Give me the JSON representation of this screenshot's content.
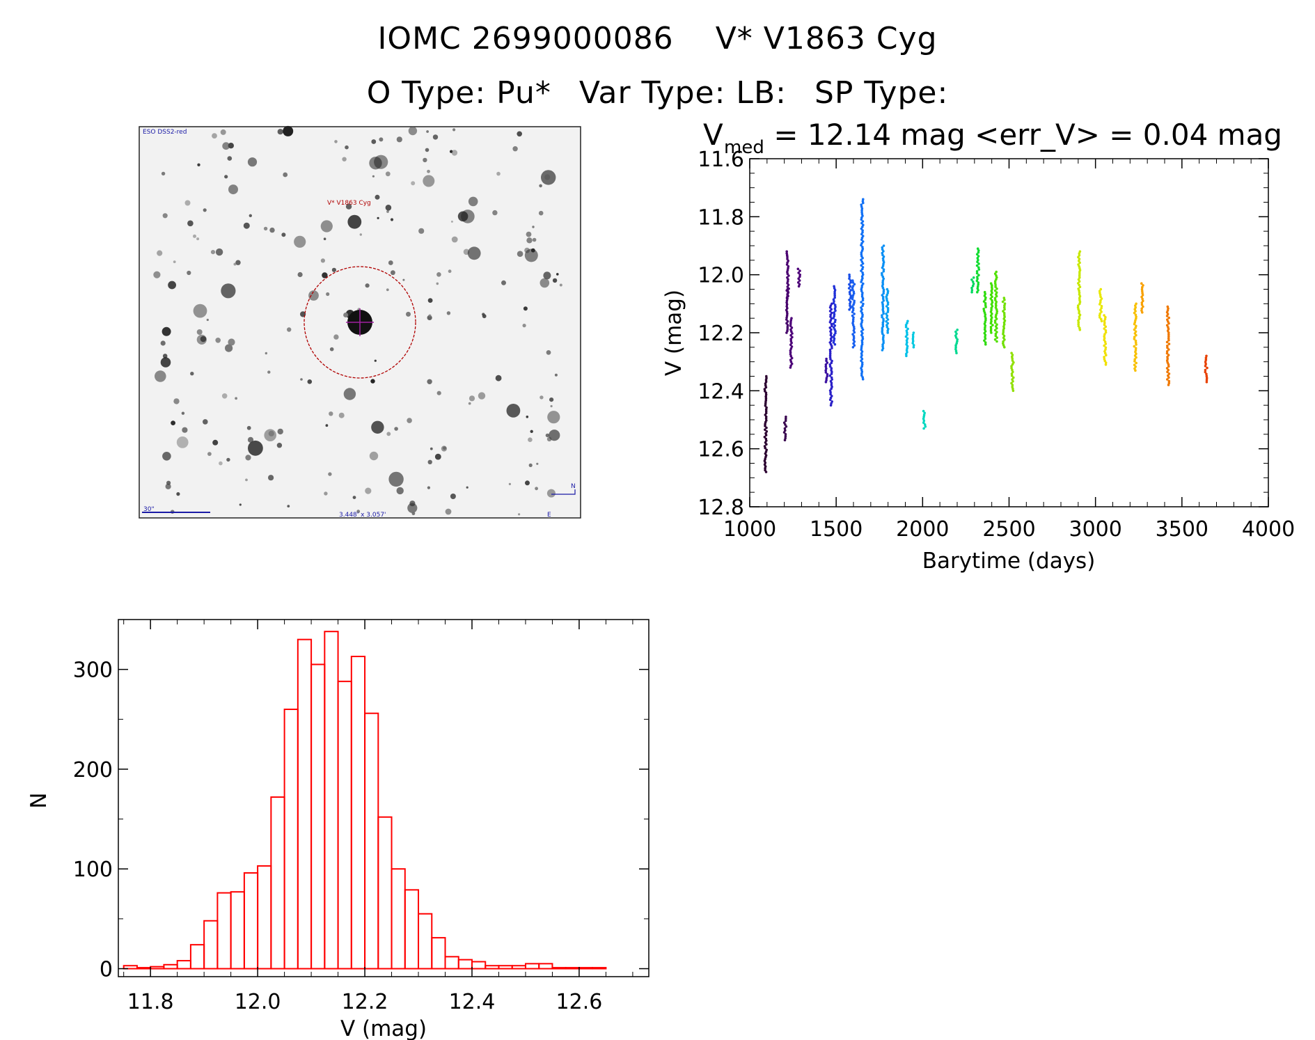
{
  "header": {
    "line1_a": "IOMC 2699000086",
    "line1_b": "V* V1863 Cyg",
    "line2_a": "O Type: Pu*",
    "line2_b": "Var Type: LB:",
    "line2_c": "SP Type:"
  },
  "image_panel": {
    "survey_label": "ESO DSS2-red",
    "object_label": "V* V1863 Cyg",
    "scale_label": "30\"",
    "size_label": "3.448' x 3.057'",
    "north_label": "N",
    "east_label": "E",
    "colors": {
      "annotation_blue": "#1a1aa6",
      "circle_red": "#b00000"
    }
  },
  "chart_data": [
    {
      "type": "scatter",
      "title_main": "V",
      "title_sub": "med",
      "title_rest": " = 12.14 mag <err_V> = 0.04 mag",
      "xlabel": "Barytime (days)",
      "ylabel": "V (mag)",
      "xlim": [
        1000,
        4000
      ],
      "ylim": [
        12.8,
        11.6
      ],
      "xticks": [
        "1000",
        "1500",
        "2000",
        "2500",
        "3000",
        "3500",
        "4000"
      ],
      "yticks": [
        "11.6",
        "11.8",
        "12.0",
        "12.2",
        "12.4",
        "12.6",
        "12.8"
      ],
      "clusters": [
        {
          "x": 1092,
          "ymin": 12.35,
          "ymax": 12.68,
          "color": "#2b0030"
        },
        {
          "x": 1205,
          "ymin": 12.49,
          "ymax": 12.57,
          "color": "#3a0850"
        },
        {
          "x": 1215,
          "ymin": 12.05,
          "ymax": 12.2,
          "color": "#45006a"
        },
        {
          "x": 1220,
          "ymin": 11.92,
          "ymax": 12.08,
          "color": "#4a0070"
        },
        {
          "x": 1240,
          "ymin": 12.15,
          "ymax": 12.32,
          "color": "#4c0078"
        },
        {
          "x": 1285,
          "ymin": 11.98,
          "ymax": 12.04,
          "color": "#4c0078"
        },
        {
          "x": 1445,
          "ymin": 12.29,
          "ymax": 12.37,
          "color": "#3a10a0"
        },
        {
          "x": 1470,
          "ymin": 12.1,
          "ymax": 12.45,
          "color": "#2a20c8"
        },
        {
          "x": 1490,
          "ymin": 12.04,
          "ymax": 12.24,
          "color": "#2030d8"
        },
        {
          "x": 1580,
          "ymin": 12.0,
          "ymax": 12.12,
          "color": "#1a50e8"
        },
        {
          "x": 1600,
          "ymin": 12.02,
          "ymax": 12.25,
          "color": "#1860f0"
        },
        {
          "x": 1650,
          "ymin": 11.74,
          "ymax": 12.36,
          "color": "#1070f5"
        },
        {
          "x": 1770,
          "ymin": 11.9,
          "ymax": 12.26,
          "color": "#0a90f5"
        },
        {
          "x": 1795,
          "ymin": 12.05,
          "ymax": 12.2,
          "color": "#08a0f0"
        },
        {
          "x": 1910,
          "ymin": 12.16,
          "ymax": 12.28,
          "color": "#00c0e8"
        },
        {
          "x": 1945,
          "ymin": 12.2,
          "ymax": 12.25,
          "color": "#00c8e0"
        },
        {
          "x": 2010,
          "ymin": 12.47,
          "ymax": 12.53,
          "color": "#00d8c0"
        },
        {
          "x": 2195,
          "ymin": 12.19,
          "ymax": 12.27,
          "color": "#00d890"
        },
        {
          "x": 2290,
          "ymin": 12.01,
          "ymax": 12.06,
          "color": "#00d860"
        },
        {
          "x": 2320,
          "ymin": 11.91,
          "ymax": 12.06,
          "color": "#10dc30"
        },
        {
          "x": 2360,
          "ymin": 12.06,
          "ymax": 12.24,
          "color": "#30dc10"
        },
        {
          "x": 2400,
          "ymin": 12.03,
          "ymax": 12.2,
          "color": "#40e000"
        },
        {
          "x": 2425,
          "ymin": 11.99,
          "ymax": 12.23,
          "color": "#50e000"
        },
        {
          "x": 2470,
          "ymin": 12.08,
          "ymax": 12.25,
          "color": "#70e000"
        },
        {
          "x": 2520,
          "ymin": 12.27,
          "ymax": 12.4,
          "color": "#90e000"
        },
        {
          "x": 2905,
          "ymin": 11.92,
          "ymax": 12.19,
          "color": "#c8e800"
        },
        {
          "x": 3030,
          "ymin": 12.05,
          "ymax": 12.16,
          "color": "#e8e800"
        },
        {
          "x": 3055,
          "ymin": 12.14,
          "ymax": 12.31,
          "color": "#f0e000"
        },
        {
          "x": 3230,
          "ymin": 12.1,
          "ymax": 12.33,
          "color": "#f8c000"
        },
        {
          "x": 3270,
          "ymin": 12.03,
          "ymax": 12.13,
          "color": "#f8a000"
        },
        {
          "x": 3420,
          "ymin": 12.11,
          "ymax": 12.38,
          "color": "#f07800"
        },
        {
          "x": 3640,
          "ymin": 12.28,
          "ymax": 12.37,
          "color": "#e84000"
        }
      ]
    },
    {
      "type": "bar",
      "xlabel": "V (mag)",
      "ylabel": "N",
      "xlim": [
        11.74,
        12.73
      ],
      "ylim": [
        -8,
        350
      ],
      "xticks": [
        "11.8",
        "12.0",
        "12.2",
        "12.4",
        "12.6"
      ],
      "yticks": [
        "0",
        "100",
        "200",
        "300"
      ],
      "bin_width": 0.025,
      "bin_start": 11.75,
      "values": [
        3,
        1,
        2,
        4,
        8,
        24,
        48,
        76,
        77,
        96,
        103,
        172,
        260,
        330,
        305,
        338,
        288,
        313,
        256,
        152,
        100,
        79,
        55,
        31,
        12,
        9,
        7,
        3,
        3,
        3,
        5,
        5,
        1,
        1,
        1,
        1
      ],
      "color": "#ff0000"
    }
  ]
}
